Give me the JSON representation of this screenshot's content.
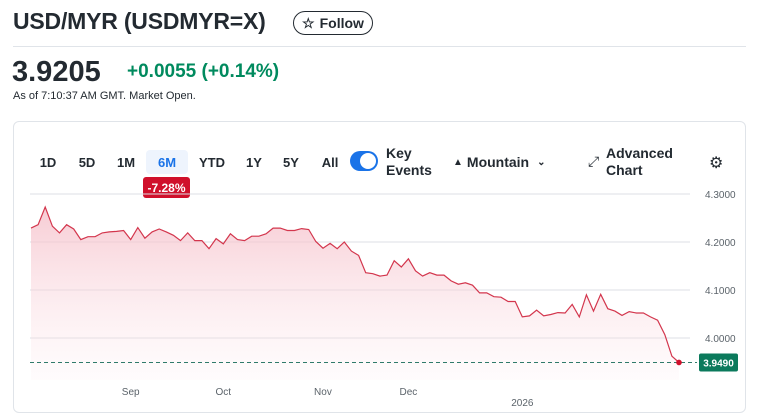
{
  "header": {
    "title": "USD/MYR (USDMYR=X)",
    "follow_label": "Follow",
    "price": "3.9205",
    "change": "+0.0055 (+0.14%)",
    "as_of": "As of 7:10:37 AM GMT. Market Open."
  },
  "toolbar": {
    "ranges": [
      "1D",
      "5D",
      "1M",
      "6M",
      "YTD",
      "1Y",
      "5Y",
      "All"
    ],
    "selected_range": "6M",
    "range_change": "-7.28%",
    "key_events_label": "Key",
    "key_events_label2": "Events",
    "key_events_on": true,
    "chart_type": "Mountain",
    "advanced_label": "Advanced",
    "advanced_label2": "Chart"
  },
  "colors": {
    "line": "#d3364d",
    "fill": "#f9d6dc",
    "positive": "#008a5e",
    "badge": "#d0102b",
    "accent": "#1a73e8"
  },
  "chart_data": {
    "type": "area",
    "title": "USD/MYR 6M",
    "ylim": [
      3.94,
      4.3
    ],
    "yticks": [
      "4.3000",
      "4.2000",
      "4.1000",
      "4.0000"
    ],
    "ytick_values": [
      4.3,
      4.2,
      4.1,
      4.0
    ],
    "last_value": "3.9490",
    "last_numeric": 3.949,
    "xticks": [
      {
        "label": "Sep",
        "index": 14
      },
      {
        "label": "Oct",
        "index": 27
      },
      {
        "label": "Nov",
        "index": 41
      },
      {
        "label": "Dec",
        "index": 53
      },
      {
        "label": "2026",
        "index": 69
      }
    ],
    "values": [
      4.229,
      4.236,
      4.273,
      4.233,
      4.219,
      4.236,
      4.227,
      4.205,
      4.211,
      4.211,
      4.219,
      4.221,
      4.222,
      4.224,
      4.205,
      4.23,
      4.208,
      4.221,
      4.227,
      4.221,
      4.214,
      4.203,
      4.219,
      4.203,
      4.203,
      4.186,
      4.207,
      4.196,
      4.217,
      4.205,
      4.203,
      4.212,
      4.212,
      4.217,
      4.229,
      4.229,
      4.224,
      4.224,
      4.228,
      4.226,
      4.201,
      4.187,
      4.197,
      4.186,
      4.2,
      4.181,
      4.172,
      4.136,
      4.134,
      4.129,
      4.131,
      4.161,
      4.148,
      4.165,
      4.14,
      4.129,
      4.136,
      4.131,
      4.131,
      4.119,
      4.112,
      4.115,
      4.11,
      4.094,
      4.094,
      4.086,
      4.085,
      4.076,
      4.076,
      4.044,
      4.046,
      4.058,
      4.046,
      4.049,
      4.053,
      4.052,
      4.07,
      4.044,
      4.09,
      4.056,
      4.091,
      4.061,
      4.056,
      4.047,
      4.055,
      4.052,
      4.052,
      4.044,
      4.037,
      4.007,
      3.962,
      3.949
    ]
  }
}
